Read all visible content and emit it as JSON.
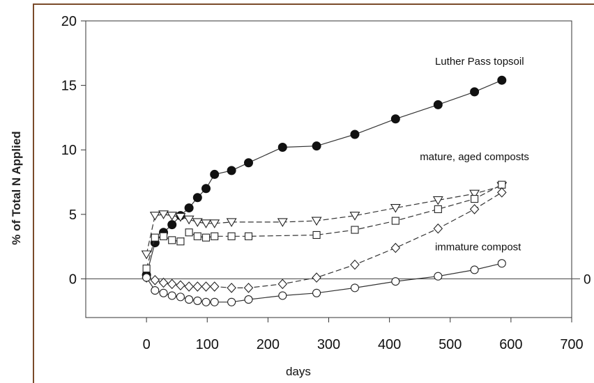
{
  "chart_data": {
    "type": "line",
    "xlabel": "days",
    "ylabel": "% of Total N Applied",
    "xlim": [
      -100,
      700
    ],
    "ylim": [
      -3,
      20
    ],
    "xticks": [
      0,
      100,
      200,
      300,
      400,
      500,
      600,
      700
    ],
    "yticks": [
      0,
      5,
      10,
      15,
      20
    ],
    "zero_line_label": "0",
    "grid": false,
    "annotations": [
      {
        "text": "Luther Pass topsoil",
        "x": 475,
        "y": 16.6
      },
      {
        "text": "mature, aged composts",
        "x": 450,
        "y": 9.2
      },
      {
        "text": "immature compost",
        "x": 475,
        "y": 2.2
      }
    ],
    "series": [
      {
        "marker": "filled-circle",
        "x": [
          0,
          14,
          28,
          42,
          56,
          70,
          84,
          98,
          112,
          140,
          168,
          224,
          280,
          343,
          410,
          480,
          540,
          585
        ],
        "y": [
          0.3,
          2.8,
          3.6,
          4.2,
          4.9,
          5.5,
          6.3,
          7.0,
          8.1,
          8.4,
          9.0,
          10.2,
          10.3,
          11.2,
          12.4,
          13.5,
          14.5,
          15.4
        ]
      },
      {
        "marker": "open-triangle-down",
        "x": [
          0,
          14,
          28,
          42,
          56,
          70,
          84,
          98,
          112,
          140,
          224,
          280,
          343,
          410,
          480,
          540,
          585
        ],
        "y": [
          1.9,
          4.9,
          5.0,
          4.9,
          4.8,
          4.6,
          4.4,
          4.3,
          4.3,
          4.4,
          4.4,
          4.5,
          4.9,
          5.5,
          6.1,
          6.6,
          7.2
        ]
      },
      {
        "marker": "open-square",
        "x": [
          0,
          14,
          28,
          42,
          56,
          70,
          84,
          98,
          112,
          140,
          168,
          280,
          343,
          410,
          480,
          540,
          585
        ],
        "y": [
          0.8,
          3.2,
          3.3,
          3.0,
          2.9,
          3.6,
          3.3,
          3.2,
          3.3,
          3.3,
          3.3,
          3.4,
          3.8,
          4.5,
          5.4,
          6.2,
          7.3
        ]
      },
      {
        "marker": "open-diamond",
        "x": [
          0,
          14,
          28,
          42,
          56,
          70,
          84,
          98,
          112,
          140,
          168,
          224,
          280,
          343,
          410,
          480,
          540,
          585
        ],
        "y": [
          0.1,
          -0.1,
          -0.3,
          -0.4,
          -0.5,
          -0.6,
          -0.6,
          -0.6,
          -0.6,
          -0.7,
          -0.7,
          -0.4,
          0.1,
          1.1,
          2.4,
          3.9,
          5.4,
          6.7
        ]
      },
      {
        "marker": "open-circle",
        "x": [
          0,
          14,
          28,
          42,
          56,
          70,
          84,
          98,
          112,
          140,
          168,
          224,
          280,
          343,
          410,
          480,
          540,
          585
        ],
        "y": [
          0.1,
          -0.9,
          -1.1,
          -1.3,
          -1.4,
          -1.6,
          -1.7,
          -1.8,
          -1.8,
          -1.8,
          -1.6,
          -1.3,
          -1.1,
          -0.7,
          -0.2,
          0.2,
          0.7,
          1.2
        ]
      }
    ]
  }
}
